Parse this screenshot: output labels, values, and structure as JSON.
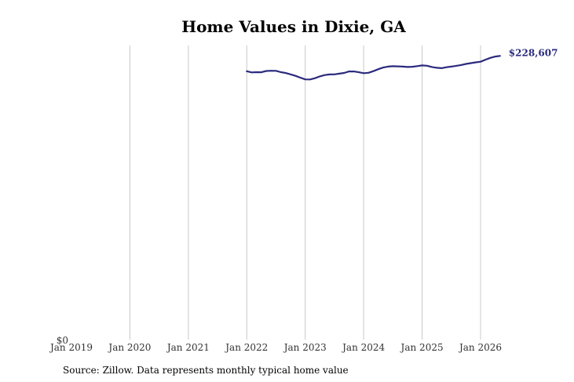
{
  "chart_data": {
    "type": "line",
    "title": "Home Values in Dixie, GA",
    "xlabel": "",
    "ylabel": "",
    "source": "Source: Zillow. Data represents monthly typical home value",
    "x_ticks": [
      "Jan 2019",
      "Jan 2020",
      "Jan 2021",
      "Jan 2022",
      "Jan 2023",
      "Jan 2024",
      "Jan 2025",
      "Jan 2026"
    ],
    "y_tick_label": "$0",
    "end_label": "$228,607",
    "ylim": [
      0,
      228607
    ],
    "grid": "vertical",
    "line_color": "#2b2a7e",
    "series": [
      {
        "x": [
          "2022-01",
          "2022-02",
          "2022-03",
          "2022-04",
          "2022-05",
          "2022-06",
          "2022-07",
          "2022-08",
          "2022-09",
          "2022-10",
          "2022-11",
          "2022-12",
          "2023-01",
          "2023-02",
          "2023-03",
          "2023-04",
          "2023-05",
          "2023-06",
          "2023-07",
          "2023-08",
          "2023-09",
          "2023-10",
          "2023-11",
          "2023-12",
          "2024-01",
          "2024-02",
          "2024-03",
          "2024-04",
          "2024-05",
          "2024-06",
          "2024-07",
          "2024-08",
          "2024-09",
          "2024-10",
          "2024-11",
          "2024-12",
          "2025-01",
          "2025-02",
          "2025-03",
          "2025-04",
          "2025-05",
          "2025-06",
          "2025-07",
          "2025-08",
          "2025-09",
          "2025-10",
          "2025-11",
          "2025-12",
          "2026-01",
          "2026-02",
          "2026-03",
          "2026-04",
          "2026-05"
        ],
        "values": [
          208600,
          207700,
          207900,
          207800,
          208800,
          209000,
          208900,
          207900,
          207200,
          206200,
          205000,
          203600,
          202300,
          202200,
          203200,
          204600,
          205600,
          206100,
          206200,
          206700,
          207300,
          208400,
          208400,
          207800,
          207100,
          207400,
          208700,
          210200,
          211500,
          212200,
          212500,
          212400,
          212200,
          211900,
          212100,
          212600,
          213100,
          212900,
          211900,
          211300,
          211000,
          211700,
          212200,
          212800,
          213400,
          214300,
          214900,
          215500,
          216000,
          217600,
          219000,
          220000,
          220500
        ]
      }
    ]
  }
}
